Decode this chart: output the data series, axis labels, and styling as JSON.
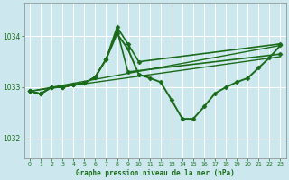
{
  "background_color": "#cce8ee",
  "grid_color": "#ffffff",
  "line_color": "#1a6b1a",
  "title": "Graphe pression niveau de la mer (hPa)",
  "xlim": [
    -0.5,
    23.5
  ],
  "ylim": [
    1031.6,
    1034.65
  ],
  "yticks": [
    1032,
    1033,
    1034
  ],
  "xticks": [
    0,
    1,
    2,
    3,
    4,
    5,
    6,
    7,
    8,
    9,
    10,
    11,
    12,
    13,
    14,
    15,
    16,
    17,
    18,
    19,
    20,
    21,
    22,
    23
  ],
  "series": [
    {
      "x": [
        0,
        1,
        2,
        3,
        4,
        5,
        6,
        7,
        8,
        9,
        10,
        11,
        12,
        13,
        14,
        15,
        16,
        17,
        18,
        19,
        20,
        21,
        22,
        23
      ],
      "y": [
        1032.92,
        1032.87,
        1033.0,
        1033.0,
        1033.05,
        1033.08,
        1033.2,
        1033.55,
        1034.05,
        1033.75,
        1033.25,
        1033.18,
        1033.1,
        1032.75,
        1032.38,
        1032.38,
        1032.62,
        1032.88,
        1033.0,
        1033.1,
        1033.18,
        1033.38,
        1033.58,
        1033.82
      ],
      "marker": "D",
      "markersize": 2.5,
      "linewidth": 1.4
    },
    {
      "x": [
        0,
        1,
        2,
        3,
        4,
        5,
        6,
        7,
        8,
        9,
        10,
        23
      ],
      "y": [
        1032.92,
        1032.87,
        1033.0,
        1033.0,
        1033.05,
        1033.08,
        1033.2,
        1033.55,
        1034.18,
        1033.85,
        1033.5,
        1033.85
      ],
      "marker": "D",
      "markersize": 2.5,
      "linewidth": 1.2
    },
    {
      "x": [
        0,
        1,
        2,
        3,
        4,
        5,
        6,
        7,
        8,
        9,
        23
      ],
      "y": [
        1032.92,
        1032.87,
        1033.0,
        1033.0,
        1033.05,
        1033.08,
        1033.2,
        1033.55,
        1034.12,
        1033.3,
        1033.65
      ],
      "marker": "D",
      "markersize": 2.5,
      "linewidth": 1.2
    },
    {
      "x": [
        0,
        23
      ],
      "y": [
        1032.92,
        1033.82
      ],
      "marker": null,
      "markersize": 0,
      "linewidth": 1.0
    },
    {
      "x": [
        0,
        23
      ],
      "y": [
        1032.92,
        1033.6
      ],
      "marker": null,
      "markersize": 0,
      "linewidth": 1.0
    }
  ]
}
